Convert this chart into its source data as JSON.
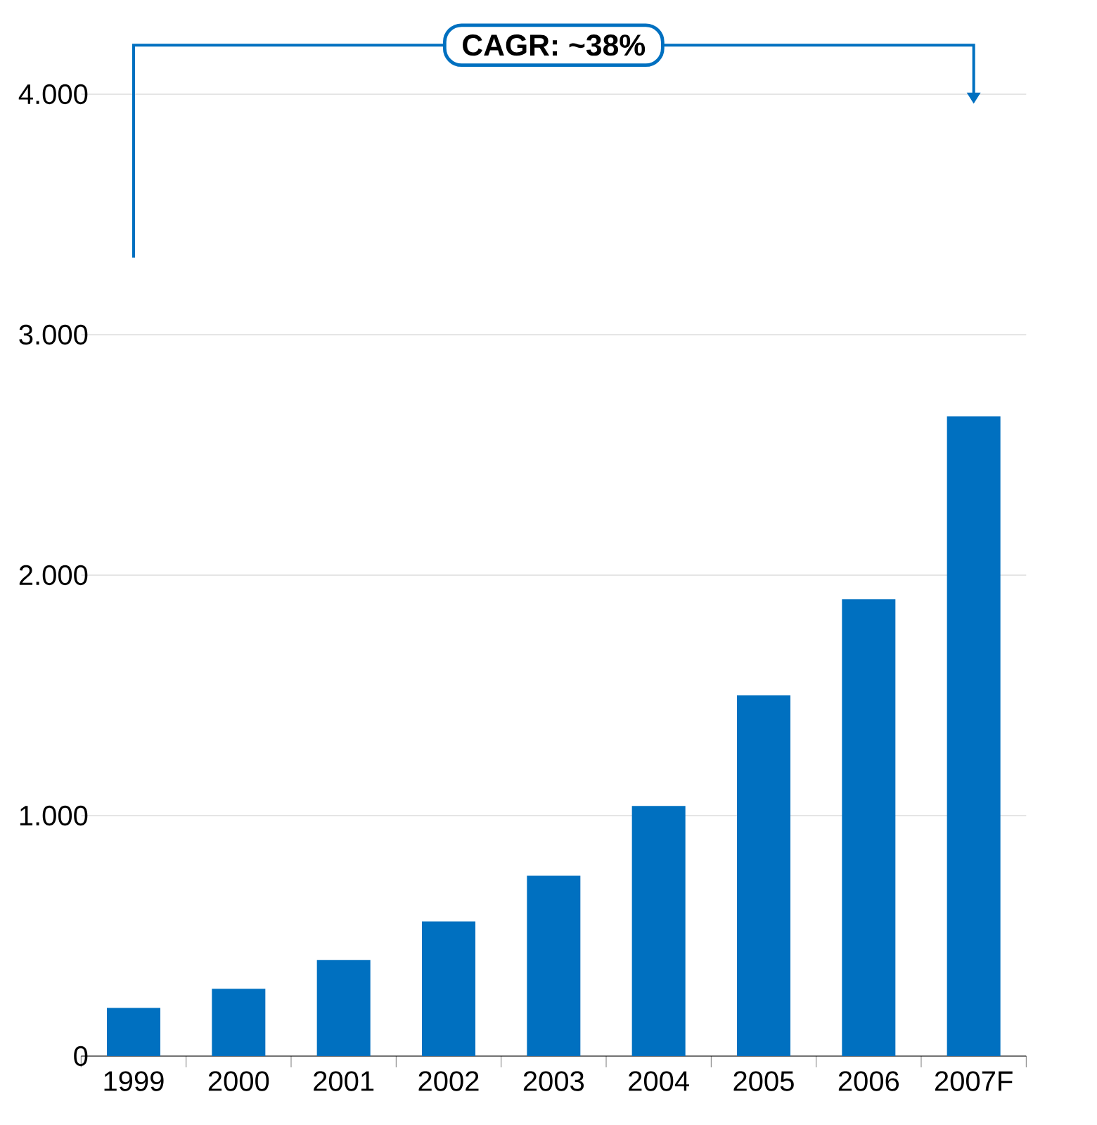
{
  "chart_data": {
    "type": "bar",
    "categories": [
      "1999",
      "2000",
      "2001",
      "2002",
      "2003",
      "2004",
      "2005",
      "2006",
      "2007F"
    ],
    "values": [
      200,
      280,
      400,
      560,
      750,
      1040,
      1500,
      1900,
      2660
    ],
    "color": "#0070c0",
    "ylim": [
      0,
      4000
    ],
    "yticks": [
      0,
      {
        "value": 1000,
        "label": "1.000"
      },
      {
        "value": 2000,
        "label": "2.000"
      },
      {
        "value": 3000,
        "label": "3.000"
      },
      {
        "value": 4000,
        "label": "4.000"
      }
    ],
    "grid": "y",
    "annotations": [
      "CAGR: ~38%"
    ]
  }
}
